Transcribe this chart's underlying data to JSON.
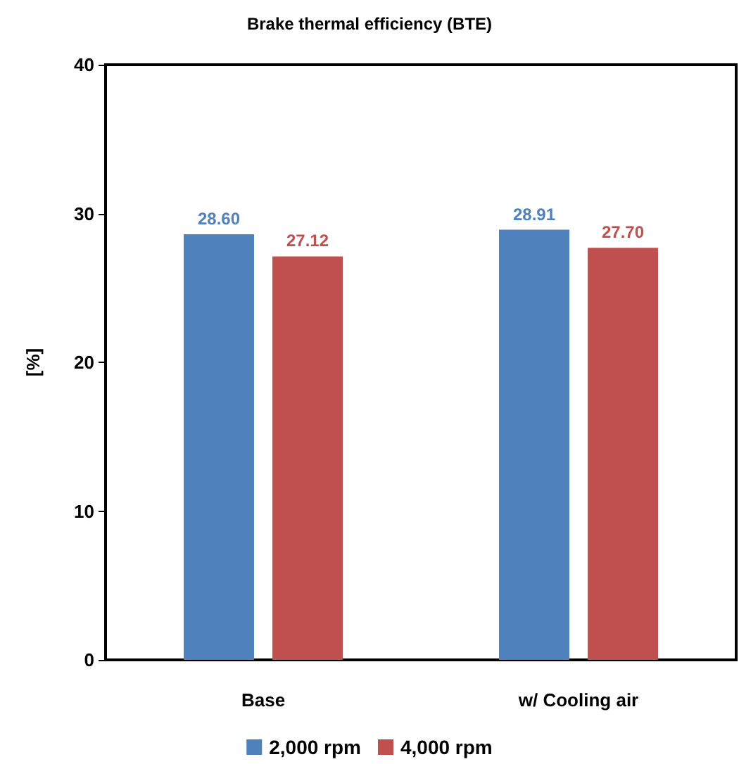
{
  "chart_data": {
    "type": "bar",
    "title": "Brake thermal efficiency (BTE)",
    "ylabel": "[%]",
    "categories": [
      "Base",
      "w/ Cooling air"
    ],
    "series": [
      {
        "name": "2,000 rpm",
        "color": "#4f81bd",
        "values": [
          28.6,
          28.91
        ],
        "value_labels": [
          "28.60",
          "28.91"
        ]
      },
      {
        "name": "4,000 rpm",
        "color": "#c0504d",
        "values": [
          27.12,
          27.7
        ],
        "value_labels": [
          "27.12",
          "27.70"
        ]
      }
    ],
    "ylim": [
      0,
      40
    ],
    "yticks": [
      0,
      10,
      20,
      30,
      40
    ],
    "grid": false,
    "legend": "bottom"
  }
}
